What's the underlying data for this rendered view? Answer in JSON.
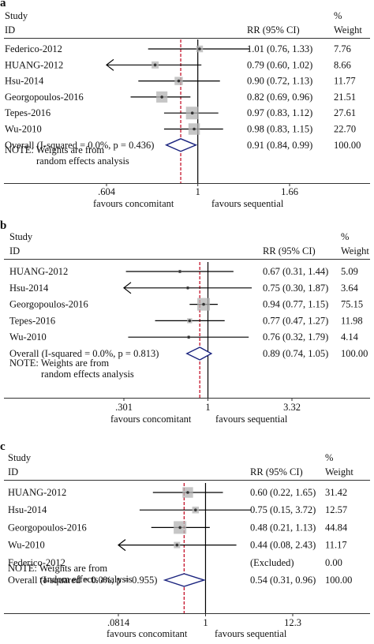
{
  "headers": {
    "study": "Study",
    "id": "ID",
    "rr": "RR (95% CI)",
    "pct": "%",
    "weight": "Weight"
  },
  "note": {
    "line1": "NOTE: Weights are from",
    "line2": "random effects analysis"
  },
  "labels": {
    "favours_left": "favours concomitant",
    "favours_right": "favours sequential"
  },
  "colors": {
    "ci_line": "#000000",
    "point": "#333333",
    "weight_box": "#b3b3b3",
    "null_line": "#000000",
    "overall_line": "#c0001a",
    "diamond": "#1a237e"
  },
  "chart_data": [
    {
      "type": "forest",
      "panel": "a",
      "scale": "log",
      "xlim": [
        0.604,
        1.66
      ],
      "ticks": [
        {
          "value": 0.604,
          "label": ".604"
        },
        {
          "value": 1,
          "label": "1"
        },
        {
          "value": 1.66,
          "label": "1.66"
        }
      ],
      "studies": [
        {
          "id": "Federico-2012",
          "rr": 1.01,
          "lo": 0.76,
          "hi": 1.33,
          "rr_text": "1.01 (0.76, 1.33)",
          "weight": "7.76",
          "w": 7.76
        },
        {
          "id": "HUANG-2012",
          "rr": 0.79,
          "lo": 0.6,
          "hi": 1.02,
          "rr_text": "0.79 (0.60, 1.02)",
          "weight": "8.66",
          "w": 8.66
        },
        {
          "id": "Hsu-2014",
          "rr": 0.9,
          "lo": 0.72,
          "hi": 1.13,
          "rr_text": "0.90 (0.72, 1.13)",
          "weight": "11.77",
          "w": 11.77
        },
        {
          "id": "Georgopoulos-2016",
          "rr": 0.82,
          "lo": 0.69,
          "hi": 0.96,
          "rr_text": "0.82 (0.69, 0.96)",
          "weight": "21.51",
          "w": 21.51
        },
        {
          "id": "Tepes-2016",
          "rr": 0.97,
          "lo": 0.83,
          "hi": 1.12,
          "rr_text": "0.97 (0.83, 1.12)",
          "weight": "27.61",
          "w": 27.61
        },
        {
          "id": "Wu-2010",
          "rr": 0.98,
          "lo": 0.83,
          "hi": 1.15,
          "rr_text": "0.98 (0.83, 1.15)",
          "weight": "22.70",
          "w": 22.7
        }
      ],
      "overall": {
        "label": "Overall  (I-squared = 0.0%, p = 0.436)",
        "rr": 0.91,
        "lo": 0.84,
        "hi": 0.99,
        "rr_text": "0.91 (0.84, 0.99)",
        "weight": "100.00"
      }
    },
    {
      "type": "forest",
      "panel": "b",
      "scale": "log",
      "xlim": [
        0.301,
        3.32
      ],
      "ticks": [
        {
          "value": 0.301,
          "label": ".301"
        },
        {
          "value": 1,
          "label": "1"
        },
        {
          "value": 3.32,
          "label": "3.32"
        }
      ],
      "studies": [
        {
          "id": "HUANG-2012",
          "rr": 0.67,
          "lo": 0.31,
          "hi": 1.44,
          "rr_text": "0.67 (0.31, 1.44)",
          "weight": "5.09",
          "w": 5.09
        },
        {
          "id": "Hsu-2014",
          "rr": 0.75,
          "lo": 0.3,
          "hi": 1.87,
          "rr_text": "0.75 (0.30, 1.87)",
          "weight": "3.64",
          "w": 3.64
        },
        {
          "id": "Georgopoulos-2016",
          "rr": 0.94,
          "lo": 0.77,
          "hi": 1.15,
          "rr_text": "0.94 (0.77, 1.15)",
          "weight": "75.15",
          "w": 75.15
        },
        {
          "id": "Tepes-2016",
          "rr": 0.77,
          "lo": 0.47,
          "hi": 1.27,
          "rr_text": "0.77 (0.47, 1.27)",
          "weight": "11.98",
          "w": 11.98
        },
        {
          "id": "Wu-2010",
          "rr": 0.76,
          "lo": 0.32,
          "hi": 1.79,
          "rr_text": "0.76 (0.32, 1.79)",
          "weight": "4.14",
          "w": 4.14
        }
      ],
      "overall": {
        "label": "Overall  (I-squared = 0.0%, p = 0.813)",
        "rr": 0.89,
        "lo": 0.74,
        "hi": 1.05,
        "rr_text": "0.89 (0.74, 1.05)",
        "weight": "100.00"
      }
    },
    {
      "type": "forest",
      "panel": "c",
      "scale": "log",
      "xlim": [
        0.0814,
        12.3
      ],
      "ticks": [
        {
          "value": 0.0814,
          "label": ".0814"
        },
        {
          "value": 1,
          "label": "1"
        },
        {
          "value": 12.3,
          "label": "12.3"
        }
      ],
      "studies": [
        {
          "id": "HUANG-2012",
          "rr": 0.6,
          "lo": 0.22,
          "hi": 1.65,
          "rr_text": "0.60 (0.22, 1.65)",
          "weight": "31.42",
          "w": 31.42
        },
        {
          "id": "Hsu-2014",
          "rr": 0.75,
          "lo": 0.15,
          "hi": 3.72,
          "rr_text": "0.75 (0.15, 3.72)",
          "weight": "12.57",
          "w": 12.57
        },
        {
          "id": "Georgopoulos-2016",
          "rr": 0.48,
          "lo": 0.21,
          "hi": 1.13,
          "rr_text": "0.48 (0.21, 1.13)",
          "weight": "44.84",
          "w": 44.84
        },
        {
          "id": "Wu-2010",
          "rr": 0.44,
          "lo": 0.08,
          "hi": 2.43,
          "rr_text": "0.44 (0.08, 2.43)",
          "weight": "11.17",
          "w": 11.17
        },
        {
          "id": "Federico-2012",
          "rr": null,
          "lo": null,
          "hi": null,
          "rr_text": "(Excluded)",
          "weight": "0.00",
          "w": 0
        }
      ],
      "overall": {
        "label": "Overall  (I-squared = 0.0%, p = 0.955)",
        "rr": 0.54,
        "lo": 0.31,
        "hi": 0.96,
        "rr_text": "0.54 (0.31, 0.96)",
        "weight": "100.00"
      }
    }
  ]
}
